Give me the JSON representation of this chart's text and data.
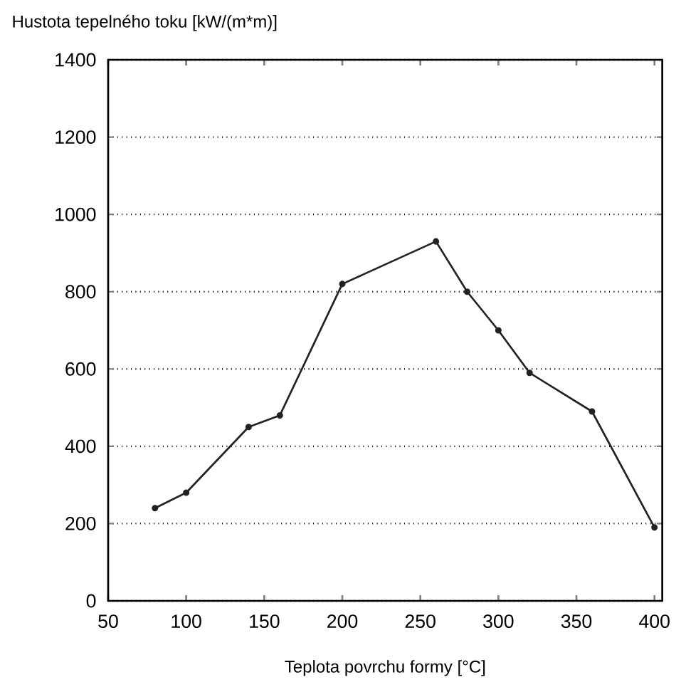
{
  "chart_data": {
    "type": "line",
    "xlabel": "Teplota povrchu formy [°C]",
    "ylabel": "Hustota tepelného toku [kW/(m*m)]",
    "x": [
      80,
      100,
      140,
      160,
      200,
      260,
      280,
      300,
      320,
      360,
      400
    ],
    "series": [
      {
        "color": "#222222",
        "values": [
          240,
          280,
          450,
          480,
          820,
          930,
          800,
          700,
          590,
          490,
          190
        ]
      }
    ],
    "xlim": [
      50,
      405
    ],
    "xticks": [
      50,
      100,
      150,
      200,
      250,
      300,
      350,
      400
    ],
    "ylim": [
      0,
      1400
    ],
    "yticks": [
      0,
      200,
      400,
      600,
      800,
      1000,
      1200,
      1400
    ],
    "grid": "y",
    "marker": "circle",
    "line_style": "solid"
  }
}
